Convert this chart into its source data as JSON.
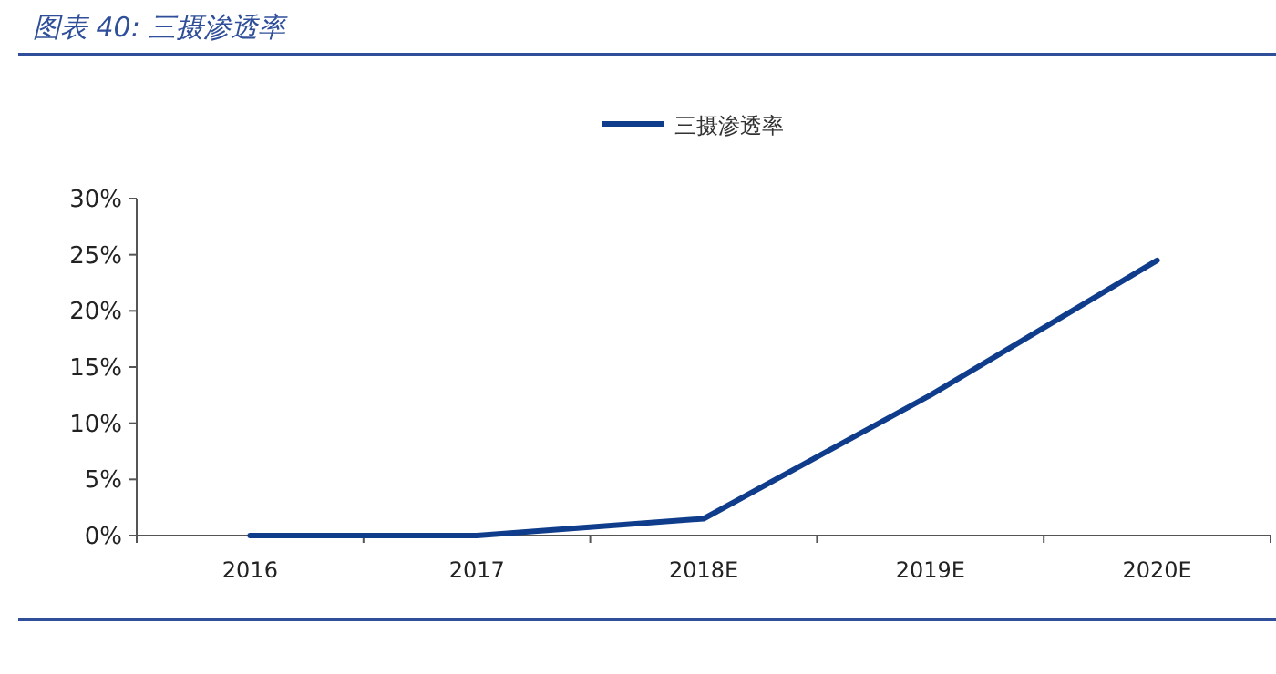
{
  "chart_data": {
    "type": "line",
    "title": "图表 40:  三摄渗透率",
    "categories": [
      "2016",
      "2017",
      "2018E",
      "2019E",
      "2020E"
    ],
    "series": [
      {
        "name": "三摄渗透率",
        "color": "#0f3d8c",
        "values": [
          0,
          0,
          1.5,
          12.5,
          24.5
        ]
      }
    ],
    "ylim": [
      0,
      30
    ],
    "yticks": [
      {
        "value": 0,
        "label": "0%"
      },
      {
        "value": 5,
        "label": "5%"
      },
      {
        "value": 10,
        "label": "10%"
      },
      {
        "value": 15,
        "label": "15%"
      },
      {
        "value": 20,
        "label": "20%"
      },
      {
        "value": 25,
        "label": "25%"
      },
      {
        "value": 30,
        "label": "30%"
      }
    ],
    "grid": false,
    "legend": "top",
    "marker": "none",
    "line_style": "solid"
  }
}
